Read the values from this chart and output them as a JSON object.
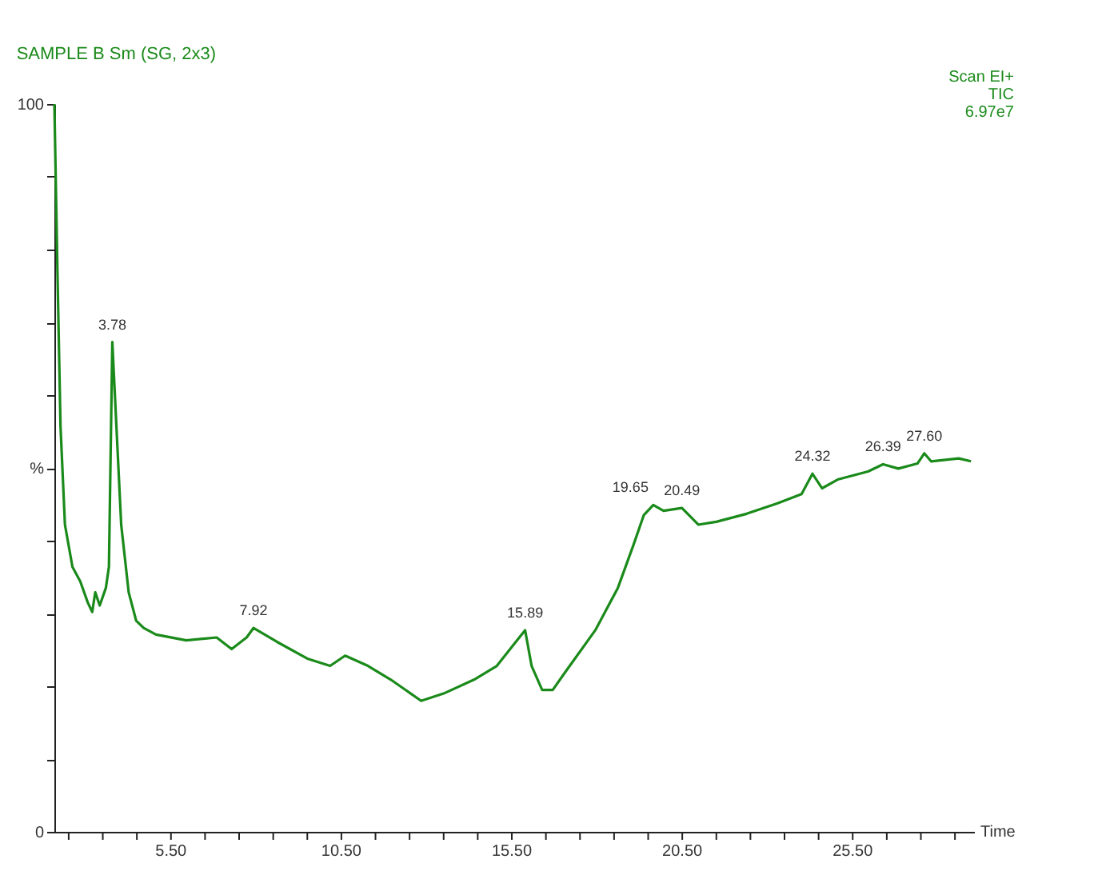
{
  "chart_data": {
    "type": "line",
    "title": "SAMPLE B Sm (SG, 2x3)",
    "xlabel": "Time",
    "x": [
      2.08,
      2.17,
      2.26,
      2.39,
      2.61,
      2.84,
      3.06,
      3.19,
      3.28,
      3.41,
      3.59,
      3.68,
      3.78,
      3.9,
      4.04,
      4.26,
      4.48,
      4.7,
      5.06,
      5.95,
      6.84,
      7.28,
      7.72,
      7.92,
      8.61,
      9.5,
      10.17,
      10.61,
      11.28,
      11.95,
      12.84,
      13.5,
      14.39,
      15.06,
      15.72,
      15.89,
      16.08,
      16.39,
      16.7,
      17.06,
      17.95,
      18.61,
      19.06,
      19.37,
      19.65,
      19.95,
      20.49,
      20.97,
      21.5,
      22.39,
      23.28,
      24.0,
      24.32,
      24.6,
      25.06,
      25.95,
      26.39,
      26.84,
      27.4,
      27.6,
      27.8,
      28.61,
      28.97
    ],
    "series": [
      {
        "color": "#1a8a1a",
        "values": [
          100,
          77.0,
          55.7,
          42.2,
          36.4,
          34.4,
          31.5,
          30.2,
          32.9,
          31.1,
          33.5,
          36.4,
          67.3,
          55.7,
          42.2,
          32.9,
          29.0,
          28.0,
          27.1,
          26.3,
          26.7,
          25.1,
          26.7,
          28.0,
          26.1,
          23.8,
          22.8,
          24.2,
          22.8,
          20.9,
          18.0,
          19.0,
          20.9,
          22.8,
          26.7,
          27.7,
          22.8,
          19.5,
          19.5,
          21.9,
          27.7,
          33.5,
          39.3,
          43.5,
          44.9,
          44.1,
          44.5,
          42.2,
          42.6,
          43.7,
          45.1,
          46.4,
          49.2,
          47.2,
          48.4,
          49.5,
          50.5,
          49.9,
          50.6,
          52.0,
          50.9,
          51.3,
          50.9
        ]
      }
    ],
    "xlim": [
      2.08,
      29.06
    ],
    "ylim": [
      0,
      100
    ],
    "xticks": [
      {
        "value": 2.5,
        "label": null
      },
      {
        "value": 3.5,
        "label": null
      },
      {
        "value": 4.5,
        "label": null
      },
      {
        "value": 5.5,
        "label": "5.50"
      },
      {
        "value": 6.5,
        "label": null
      },
      {
        "value": 7.5,
        "label": null
      },
      {
        "value": 8.5,
        "label": null
      },
      {
        "value": 9.5,
        "label": null
      },
      {
        "value": 10.5,
        "label": "10.50"
      },
      {
        "value": 11.5,
        "label": null
      },
      {
        "value": 12.5,
        "label": null
      },
      {
        "value": 13.5,
        "label": null
      },
      {
        "value": 14.5,
        "label": null
      },
      {
        "value": 15.5,
        "label": "15.50"
      },
      {
        "value": 16.5,
        "label": null
      },
      {
        "value": 17.5,
        "label": null
      },
      {
        "value": 18.5,
        "label": null
      },
      {
        "value": 19.5,
        "label": null
      },
      {
        "value": 20.5,
        "label": "20.50"
      },
      {
        "value": 21.5,
        "label": null
      },
      {
        "value": 22.5,
        "label": null
      },
      {
        "value": 23.5,
        "label": null
      },
      {
        "value": 24.5,
        "label": null
      },
      {
        "value": 25.5,
        "label": "25.50"
      },
      {
        "value": 26.5,
        "label": null
      },
      {
        "value": 27.5,
        "label": null
      },
      {
        "value": 28.5,
        "label": null
      }
    ],
    "yticks": [
      0,
      {
        "value": 10,
        "label": null
      },
      {
        "value": 20,
        "label": null
      },
      {
        "value": 30,
        "label": null
      },
      {
        "value": 40,
        "label": null
      },
      {
        "value": 50,
        "label": "%"
      },
      {
        "value": 60,
        "label": null
      },
      {
        "value": 70,
        "label": null
      },
      {
        "value": 80,
        "label": null
      },
      {
        "value": 90,
        "label": null
      },
      100
    ],
    "annotations": [
      "Scan EI+",
      "TIC",
      "6.97e7",
      {
        "text": "3.78",
        "x": 3.78,
        "y": 67.3
      },
      {
        "text": "7.92",
        "x": 7.92,
        "y": 28.0
      },
      {
        "text": "15.89",
        "x": 15.89,
        "y": 27.7
      },
      {
        "text": "19.65",
        "x": 19.65,
        "y": 44.9
      },
      {
        "text": "20.49",
        "x": 20.49,
        "y": 44.5
      },
      {
        "text": "24.32",
        "x": 24.32,
        "y": 49.2
      },
      {
        "text": "26.39",
        "x": 26.39,
        "y": 50.5
      },
      {
        "text": "27.60",
        "x": 27.6,
        "y": 52.0
      }
    ],
    "grid": false,
    "legend": false,
    "marker": "none",
    "line_style": "solid"
  }
}
